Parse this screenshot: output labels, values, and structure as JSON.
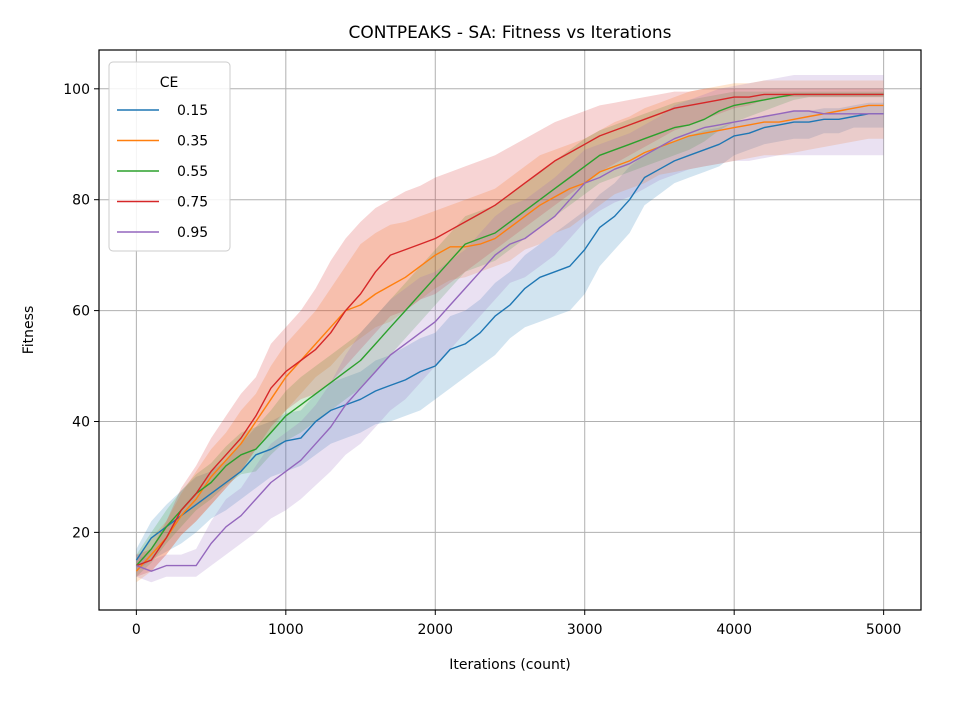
{
  "chart_data": {
    "type": "line",
    "title": "CONTPEAKS - SA: Fitness vs Iterations",
    "xlabel": "Iterations (count)",
    "ylabel": "Fitness",
    "xlim": [
      -250,
      5250
    ],
    "ylim": [
      6,
      107
    ],
    "xticks": [
      0,
      1000,
      2000,
      3000,
      4000,
      5000
    ],
    "yticks": [
      20,
      40,
      60,
      80,
      100
    ],
    "grid": true,
    "legend": {
      "title": "CE",
      "placement": "top-left"
    },
    "x": [
      0,
      100,
      200,
      300,
      400,
      500,
      600,
      700,
      800,
      900,
      1000,
      1100,
      1200,
      1300,
      1400,
      1500,
      1600,
      1700,
      1800,
      1900,
      2000,
      2100,
      2200,
      2300,
      2400,
      2500,
      2600,
      2700,
      2800,
      2900,
      3000,
      3100,
      3200,
      3300,
      3400,
      3500,
      3600,
      3700,
      3800,
      3900,
      4000,
      4100,
      4200,
      4300,
      4400,
      4500,
      4600,
      4700,
      4800,
      4900,
      5000
    ],
    "series": [
      {
        "name": "0.15",
        "color": "#1f77b4",
        "values": [
          15,
          19,
          21,
          23,
          25,
          27,
          29,
          31,
          34,
          35,
          36.5,
          37,
          40,
          42,
          43,
          44,
          45.5,
          46.5,
          47.5,
          49,
          50,
          53,
          54,
          56,
          59,
          61,
          64,
          66,
          67,
          68,
          71,
          75,
          77,
          80,
          84,
          85.5,
          87,
          88,
          89,
          90,
          91.5,
          92,
          93,
          93.5,
          94,
          94,
          94.5,
          94.5,
          95,
          95.5,
          95.5
        ],
        "lower": [
          13,
          15,
          16.5,
          18,
          20,
          22.5,
          24,
          26,
          28,
          30,
          31,
          32,
          34,
          36,
          37,
          38,
          39.5,
          40,
          41,
          42,
          44,
          46,
          48,
          50,
          52,
          55,
          57,
          58,
          59,
          60,
          63,
          68,
          71,
          74,
          79,
          81,
          83,
          84,
          85,
          86,
          88,
          89,
          90,
          90.5,
          91,
          91,
          92,
          92,
          93,
          93,
          93
        ],
        "upper": [
          17,
          22,
          25,
          27.5,
          30,
          31,
          33,
          36,
          39,
          40,
          41.5,
          42,
          45,
          47,
          48,
          49,
          51,
          52,
          53.5,
          55,
          56,
          59,
          60,
          62,
          65,
          67,
          70,
          72,
          74,
          76,
          78,
          81,
          83,
          86,
          88,
          89.5,
          90.5,
          91.5,
          92.5,
          93,
          94,
          94.5,
          95,
          95.5,
          96,
          96,
          96.5,
          96.5,
          97,
          97.5,
          97.5
        ]
      },
      {
        "name": "0.35",
        "color": "#ff7f0e",
        "values": [
          13,
          16,
          19,
          23,
          26,
          30,
          33,
          36,
          40,
          44,
          48,
          51,
          54,
          57,
          60,
          61,
          63,
          64.5,
          66,
          68,
          70,
          71.5,
          71.5,
          72,
          73,
          75,
          77,
          79,
          80.5,
          82,
          83,
          85,
          86,
          87,
          88.5,
          89.5,
          90.5,
          91.5,
          92,
          92.5,
          93,
          93.5,
          94,
          94,
          94.5,
          95,
          95.5,
          96,
          96.5,
          97,
          97
        ],
        "lower": [
          11,
          13,
          16,
          19.5,
          22,
          25,
          28,
          31,
          35,
          38,
          42,
          45,
          48,
          50,
          53,
          55,
          57,
          58,
          60,
          62,
          64,
          65.5,
          66,
          67,
          68,
          69,
          71,
          72,
          74,
          75,
          77,
          79,
          81,
          82,
          83,
          84.5,
          85,
          85.5,
          86,
          86.5,
          87,
          87.5,
          88,
          88,
          88.5,
          89,
          89.5,
          90,
          90.5,
          91,
          91
        ],
        "upper": [
          15,
          19,
          22,
          27,
          31,
          35,
          38,
          42,
          45,
          50,
          54,
          57,
          60,
          64,
          68,
          72,
          74,
          75.5,
          76,
          77,
          78,
          79,
          80,
          81,
          82,
          84,
          86,
          88,
          89,
          90,
          91,
          92.5,
          94,
          95,
          96.5,
          97.5,
          98.5,
          99.5,
          100,
          100.5,
          101,
          101,
          101.5,
          101.5,
          101.5,
          101.5,
          101.5,
          101.5,
          101.5,
          101.5,
          101.5
        ]
      },
      {
        "name": "0.55",
        "color": "#2ca02c",
        "values": [
          14,
          17,
          21,
          24,
          27,
          29,
          32,
          34,
          35,
          38,
          41,
          43,
          45,
          47,
          49,
          51,
          54,
          57,
          60,
          63,
          66,
          69,
          72,
          73,
          74,
          76,
          78,
          80,
          82,
          84,
          86,
          88,
          89,
          90,
          91,
          92,
          93,
          93.5,
          94.5,
          96,
          97,
          97.5,
          98,
          98.5,
          99,
          99,
          99,
          99,
          99,
          99,
          99
        ],
        "lower": [
          12,
          14.5,
          18,
          21,
          24,
          26,
          28.5,
          30.5,
          31,
          34,
          36.5,
          38,
          40,
          42,
          44,
          46,
          49,
          52,
          55,
          58,
          61,
          64,
          67,
          68,
          69,
          71,
          73,
          75,
          77,
          79,
          81,
          83,
          84,
          85,
          86,
          87,
          88,
          89,
          90.5,
          92.5,
          94,
          95,
          96,
          97,
          98,
          98.5,
          98.5,
          98.5,
          98.5,
          98.5,
          98.5
        ],
        "upper": [
          16,
          20,
          24,
          27.5,
          30.5,
          32.5,
          35.5,
          38,
          39,
          42,
          45.5,
          48,
          50,
          52,
          54,
          56,
          59,
          62,
          65,
          68,
          71,
          74,
          77,
          78,
          79,
          81,
          83,
          85,
          87,
          89,
          91,
          92.5,
          93.5,
          94.5,
          95.5,
          96.5,
          97.5,
          98,
          98.5,
          99,
          99.5,
          99.5,
          99.5,
          99.5,
          99.5,
          99.5,
          99.5,
          99.5,
          99.5,
          99.5,
          99.5
        ]
      },
      {
        "name": "0.75",
        "color": "#d62728",
        "values": [
          14,
          15,
          19,
          24,
          27,
          31,
          34,
          37,
          41,
          46,
          49,
          51,
          53,
          56,
          60,
          63,
          67,
          70,
          71,
          72,
          73,
          74.5,
          76,
          77.5,
          79,
          81,
          83,
          85,
          87,
          88.5,
          90,
          91.5,
          92.5,
          93.5,
          94.5,
          95.5,
          96.5,
          97,
          97.5,
          98,
          98.5,
          98.5,
          99,
          99,
          99,
          99,
          99,
          99,
          99,
          99,
          99
        ],
        "lower": [
          12,
          13,
          16,
          19.5,
          22,
          25,
          28,
          31,
          35,
          39,
          42,
          44,
          45,
          47,
          50,
          53,
          56,
          59,
          60,
          62,
          63,
          65,
          67,
          69,
          71,
          73,
          75,
          77,
          79,
          81,
          83,
          85,
          86.5,
          88,
          89.5,
          91,
          92.5,
          93.5,
          94.5,
          95.5,
          96.5,
          97,
          98,
          98.5,
          98.5,
          98.5,
          98.5,
          98.5,
          98.5,
          98.5,
          98.5
        ],
        "upper": [
          16,
          17,
          22,
          28,
          32,
          37,
          41,
          45,
          48,
          54,
          57,
          60,
          64,
          69,
          73,
          76,
          78.5,
          80,
          81.5,
          82.5,
          84,
          85,
          86,
          87,
          88,
          89.5,
          91,
          92.5,
          94,
          95,
          96,
          97,
          97.5,
          98,
          98.5,
          99,
          99.5,
          99.5,
          100,
          100,
          100,
          100,
          100,
          100,
          100,
          100,
          100,
          100,
          100,
          100,
          100
        ]
      },
      {
        "name": "0.95",
        "color": "#9467bd",
        "values": [
          14,
          13,
          14,
          14,
          14,
          18,
          21,
          23,
          26,
          29,
          31,
          33,
          36,
          39,
          43,
          46,
          49,
          52,
          54,
          56,
          58,
          61,
          64,
          67,
          70,
          72,
          73,
          75,
          77,
          80,
          83,
          84,
          85.5,
          86.5,
          88,
          89.5,
          91,
          92,
          93,
          93.5,
          94,
          94.5,
          95,
          95.5,
          96,
          96,
          95.5,
          95.5,
          95.5,
          95.5,
          95.5
        ],
        "lower": [
          12,
          11,
          12,
          12,
          12,
          14,
          16,
          18,
          20,
          22.5,
          24,
          26,
          28.5,
          31,
          34,
          36,
          39,
          42,
          44,
          47,
          50,
          53,
          56,
          59,
          62,
          65,
          66,
          68,
          70,
          73,
          76,
          78,
          79.5,
          80.5,
          82,
          83.5,
          84.5,
          85.5,
          86,
          86.5,
          87,
          87,
          87.5,
          88,
          88,
          88,
          88,
          88,
          88,
          88,
          88
        ],
        "upper": [
          16,
          15,
          16,
          16,
          17,
          22,
          26,
          28,
          32,
          36,
          38,
          40,
          43,
          47,
          52,
          56,
          59,
          62,
          64,
          66,
          67,
          69,
          71,
          74,
          77,
          79,
          80,
          82,
          84,
          86.5,
          89,
          90,
          91,
          92,
          93.5,
          95,
          97,
          98,
          99,
          100,
          100.5,
          101,
          101.5,
          102,
          102.5,
          102.5,
          102.5,
          102.5,
          102.5,
          102.5,
          102.5
        ]
      }
    ]
  }
}
